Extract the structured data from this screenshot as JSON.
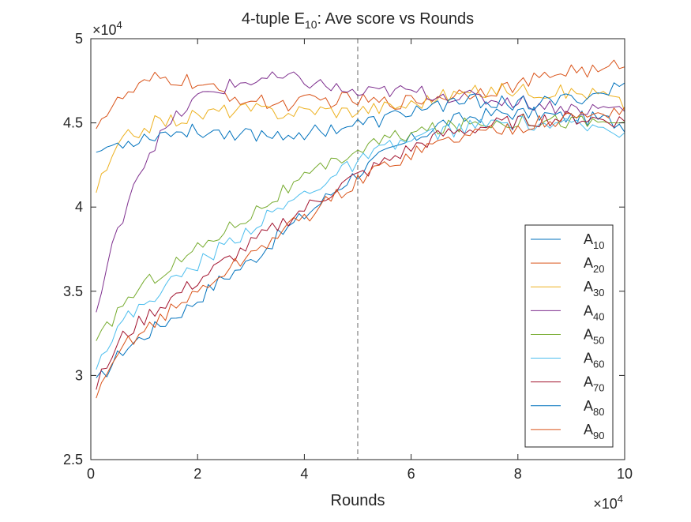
{
  "chart_data": {
    "type": "line",
    "title": "4-tuple E",
    "title_subscript": "10",
    "title_suffix": ": Ave score vs Rounds",
    "xlabel": "Rounds",
    "ylabel": "",
    "x_exponent_label": "×10",
    "x_exponent_power": "4",
    "y_exponent_label": "×10",
    "y_exponent_power": "4",
    "xlim": [
      0,
      100000
    ],
    "ylim": [
      25000,
      50000
    ],
    "x_ticks": [
      0,
      20000,
      40000,
      60000,
      80000,
      100000
    ],
    "x_tick_labels": [
      "0",
      "2",
      "4",
      "6",
      "8",
      "10"
    ],
    "y_ticks": [
      25000,
      30000,
      35000,
      40000,
      45000,
      50000
    ],
    "y_tick_labels": [
      "2.5",
      "3",
      "3.5",
      "4",
      "4.5",
      "5"
    ],
    "grid": false,
    "legend_position": "bottom-right",
    "reference_line": {
      "x": 50000,
      "style": "dashed",
      "color": "#666666"
    },
    "series": [
      {
        "name": "A",
        "name_subscript": "10",
        "color": "#0072BD",
        "x": [
          1000,
          6000,
          12000,
          18000,
          24000,
          30000,
          36000,
          42000,
          48000,
          54000,
          60000,
          66000,
          72000,
          78000,
          84000,
          90000,
          96000,
          100000
        ],
        "values": [
          29500,
          31500,
          32800,
          34000,
          35600,
          36800,
          38500,
          40000,
          41600,
          42900,
          44000,
          45000,
          45400,
          45600,
          45500,
          45300,
          45200,
          44900
        ]
      },
      {
        "name": "A",
        "name_subscript": "20",
        "color": "#D95319",
        "x": [
          1000,
          6000,
          12000,
          18000,
          24000,
          30000,
          36000,
          42000,
          48000,
          54000,
          60000,
          66000,
          72000,
          78000,
          84000,
          90000,
          96000,
          100000
        ],
        "values": [
          45000,
          46500,
          47600,
          47500,
          46800,
          46300,
          46100,
          46300,
          46400,
          46200,
          46300,
          46600,
          46900,
          47100,
          47600,
          48200,
          48000,
          48700
        ]
      },
      {
        "name": "A",
        "name_subscript": "30",
        "color": "#EDB120",
        "x": [
          1000,
          6000,
          12000,
          18000,
          24000,
          30000,
          36000,
          42000,
          48000,
          54000,
          60000,
          66000,
          72000,
          78000,
          84000,
          90000,
          96000,
          100000
        ],
        "values": [
          41000,
          44000,
          45000,
          45300,
          45700,
          45800,
          45600,
          45800,
          45700,
          45900,
          46100,
          46600,
          46800,
          47000,
          46900,
          46800,
          46700,
          46000
        ]
      },
      {
        "name": "A",
        "name_subscript": "40",
        "color": "#7E2F8E",
        "x": [
          1000,
          4000,
          8000,
          12000,
          16000,
          20000,
          26000,
          32000,
          38000,
          44000,
          50000,
          56000,
          62000,
          68000,
          74000,
          80000,
          86000,
          92000,
          100000
        ],
        "values": [
          33700,
          37500,
          41500,
          43800,
          45300,
          46500,
          47200,
          47600,
          47600,
          47200,
          46700,
          46900,
          46800,
          46600,
          46400,
          46300,
          46000,
          45800,
          45900
        ]
      },
      {
        "name": "A",
        "name_subscript": "50",
        "color": "#77AC30",
        "x": [
          1000,
          6000,
          12000,
          18000,
          24000,
          30000,
          36000,
          42000,
          48000,
          54000,
          60000,
          66000,
          72000,
          78000,
          84000,
          90000,
          96000,
          100000
        ],
        "values": [
          31800,
          34300,
          35900,
          37100,
          38400,
          39600,
          40900,
          42000,
          43100,
          43900,
          44400,
          44700,
          45000,
          45100,
          45200,
          45100,
          45000,
          45200
        ]
      },
      {
        "name": "A",
        "name_subscript": "60",
        "color": "#4DBEEE",
        "x": [
          1000,
          6000,
          12000,
          18000,
          24000,
          30000,
          36000,
          42000,
          48000,
          54000,
          60000,
          66000,
          72000,
          78000,
          84000,
          90000,
          96000,
          100000
        ],
        "values": [
          30800,
          33200,
          34800,
          36200,
          37500,
          38800,
          40000,
          41200,
          42300,
          43300,
          44000,
          44500,
          44800,
          45000,
          44900,
          44800,
          44700,
          44500
        ]
      },
      {
        "name": "A",
        "name_subscript": "70",
        "color": "#A2142F",
        "x": [
          1000,
          6000,
          12000,
          18000,
          24000,
          30000,
          36000,
          42000,
          48000,
          54000,
          60000,
          66000,
          72000,
          78000,
          84000,
          90000,
          96000,
          100000
        ],
        "values": [
          29400,
          32300,
          33900,
          35200,
          36500,
          37800,
          39100,
          40300,
          41500,
          42500,
          43500,
          44300,
          44700,
          45000,
          45200,
          45300,
          45200,
          45100
        ]
      },
      {
        "name": "A",
        "name_subscript": "80",
        "color": "#0072BD",
        "x": [
          1000,
          6000,
          12000,
          18000,
          24000,
          30000,
          36000,
          42000,
          48000,
          54000,
          60000,
          66000,
          72000,
          78000,
          84000,
          90000,
          96000,
          100000
        ],
        "values": [
          43300,
          43800,
          44300,
          44500,
          44500,
          44300,
          44300,
          44500,
          44800,
          45100,
          45700,
          46100,
          46300,
          46200,
          46100,
          46400,
          46800,
          47300
        ]
      },
      {
        "name": "A",
        "name_subscript": "90",
        "color": "#D95319",
        "x": [
          1000,
          6000,
          12000,
          18000,
          24000,
          30000,
          36000,
          42000,
          48000,
          54000,
          60000,
          66000,
          72000,
          78000,
          84000,
          90000,
          96000,
          100000
        ],
        "values": [
          28500,
          31800,
          33200,
          34500,
          35900,
          37200,
          38600,
          39800,
          41100,
          42300,
          43200,
          43900,
          44400,
          44700,
          45000,
          45300,
          45600,
          45800
        ]
      }
    ]
  }
}
